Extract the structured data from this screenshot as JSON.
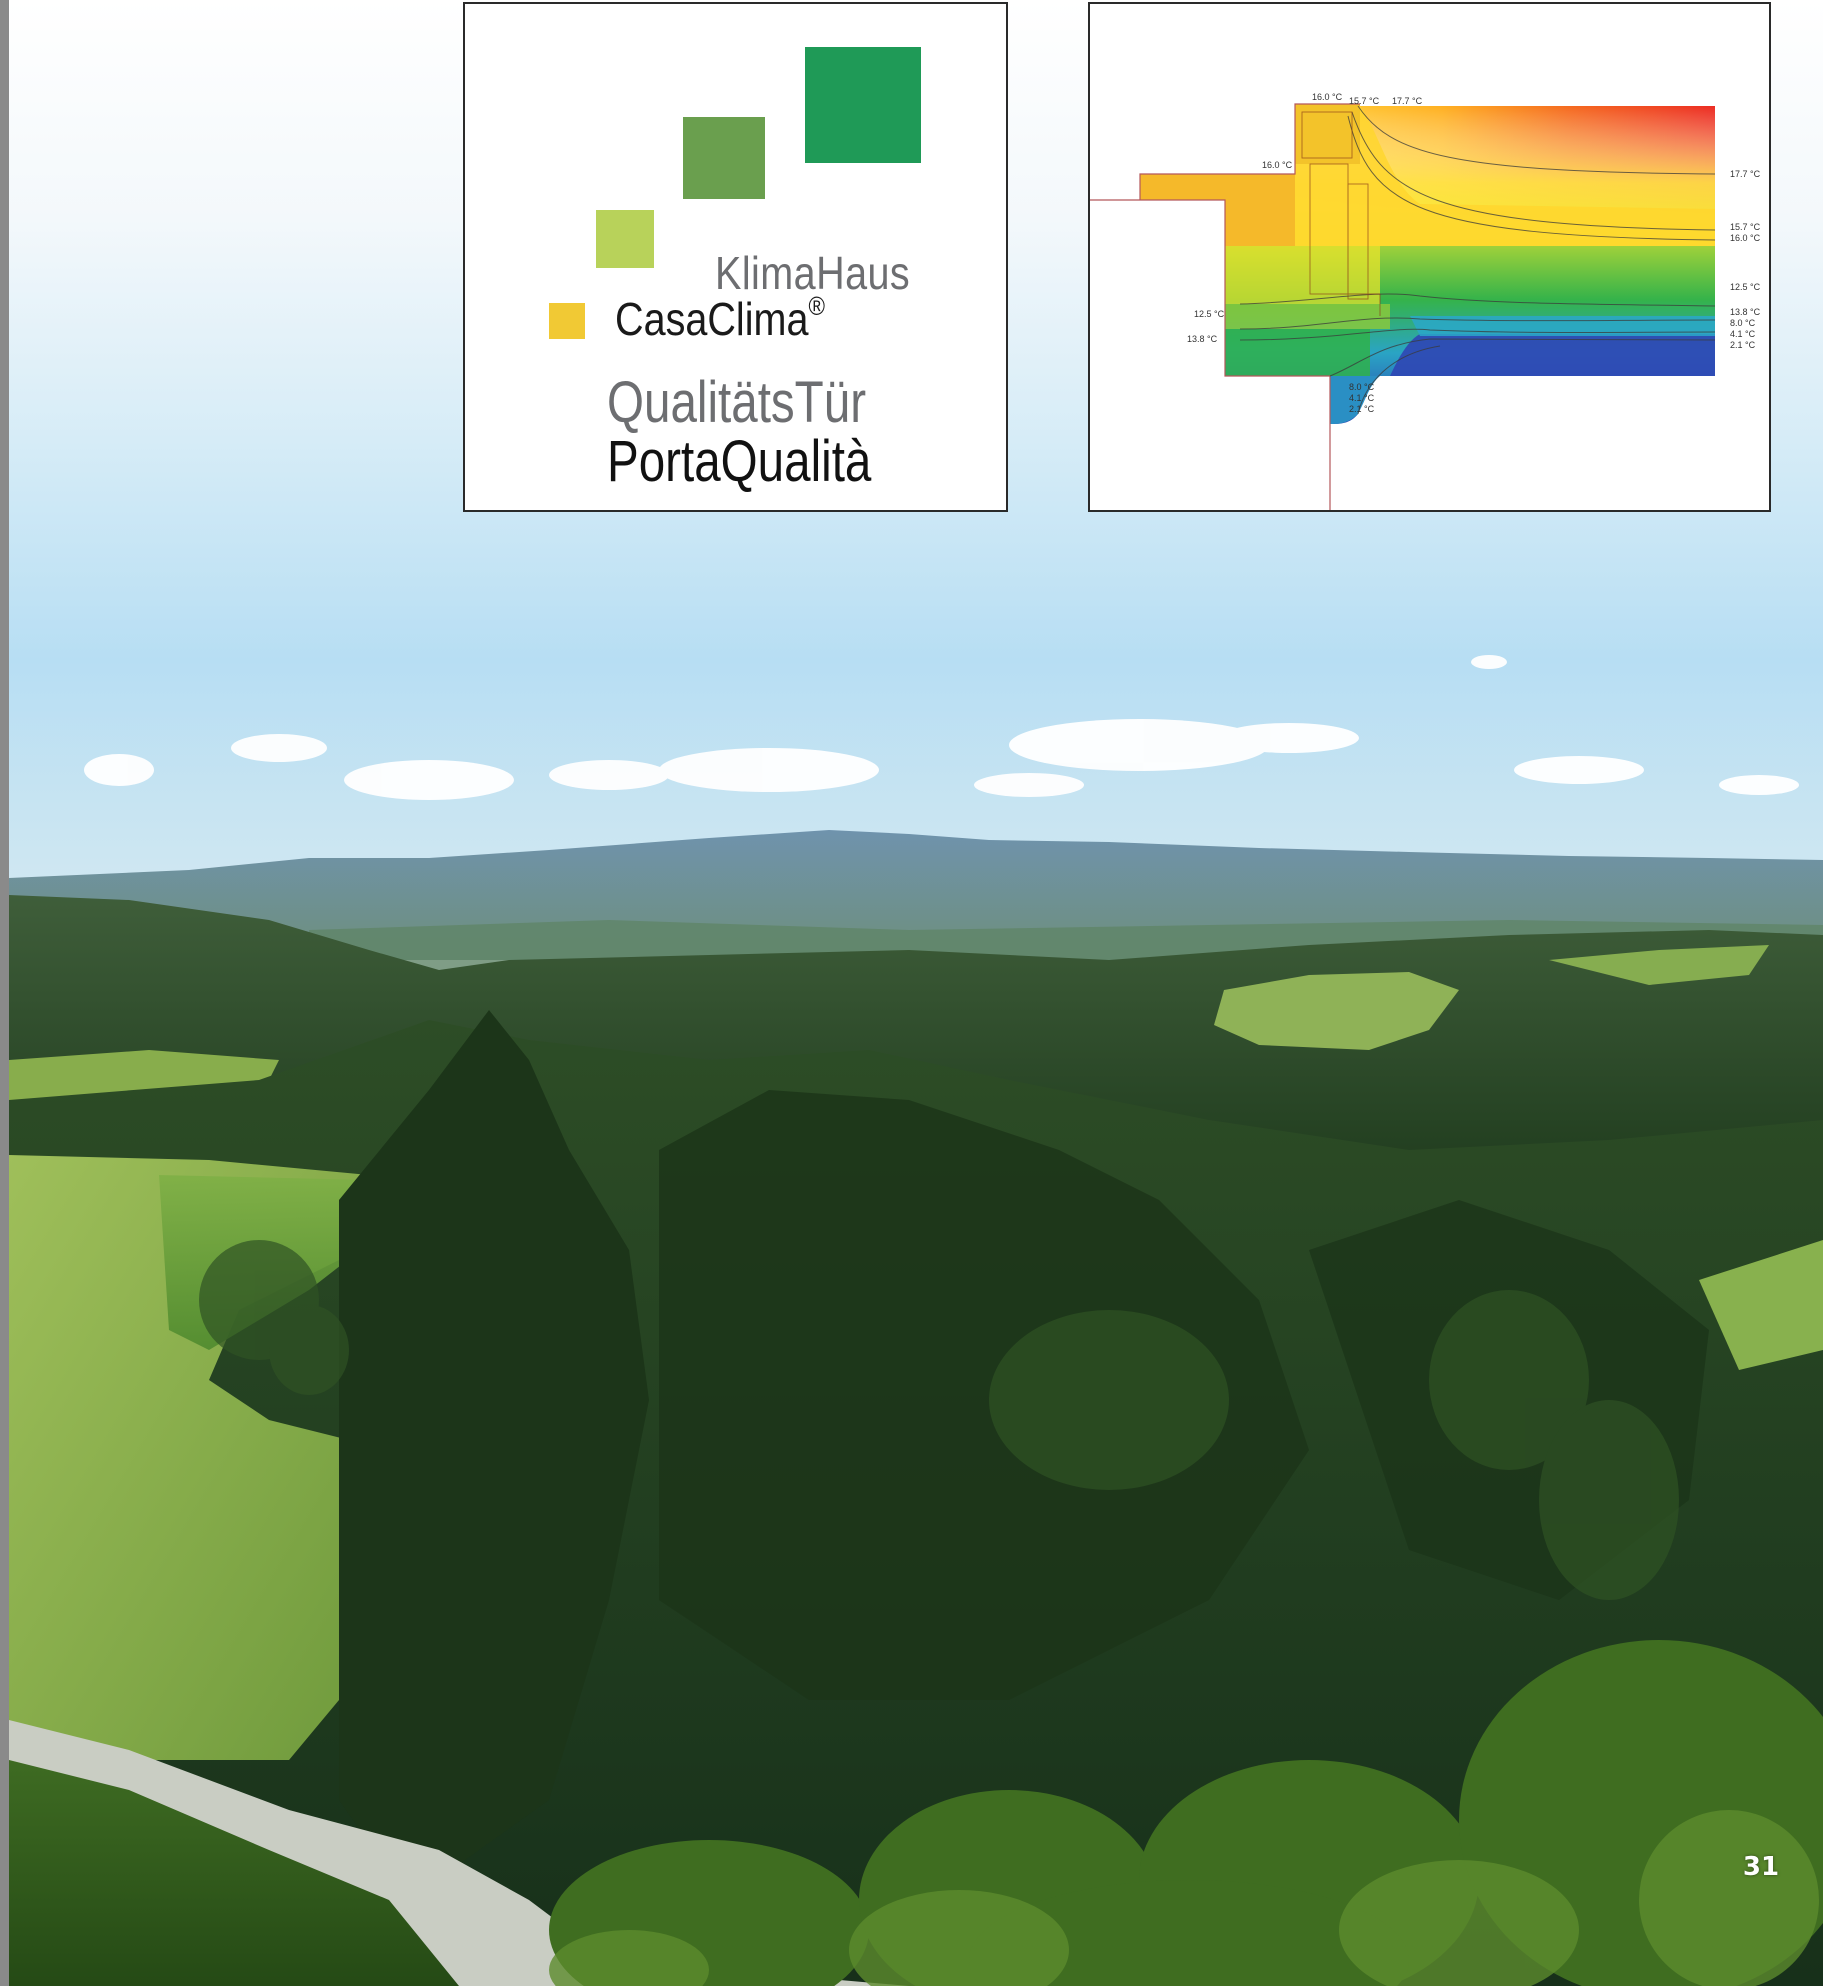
{
  "logo": {
    "line1": "KlimaHaus",
    "line2": "CasaClima",
    "registered_mark": "®",
    "line3": "QualitätsTür",
    "line4": "PortaQualità",
    "colors": {
      "dark_green": "#1f9a57",
      "mid_green": "#6a9f4e",
      "light_green": "#b8d25a",
      "yellow": "#f1c934"
    }
  },
  "thermal_diagram": {
    "isotherm_labels": {
      "t_top_1": "16.0 °C",
      "t_top_2": "15.7 °C",
      "t_top_3": "17.7 °C",
      "t_step": "16.0 °C",
      "t_left_1": "12.5 °C",
      "t_left_2": "13.8 °C",
      "t_bottom_1": "8.0 °C",
      "t_bottom_2": "4.1 °C",
      "t_bottom_3": "2.1 °C",
      "t_right_1": "17.7 °C",
      "t_right_2": "15.7 °C",
      "t_right_3": "16.0 °C",
      "t_right_4": "12.5 °C",
      "t_right_5": "13.8 °C",
      "t_right_6": "8.0 °C",
      "t_right_7": "4.1 °C",
      "t_right_8": "2.1 °C"
    }
  },
  "footer": {
    "page_number": "31"
  }
}
